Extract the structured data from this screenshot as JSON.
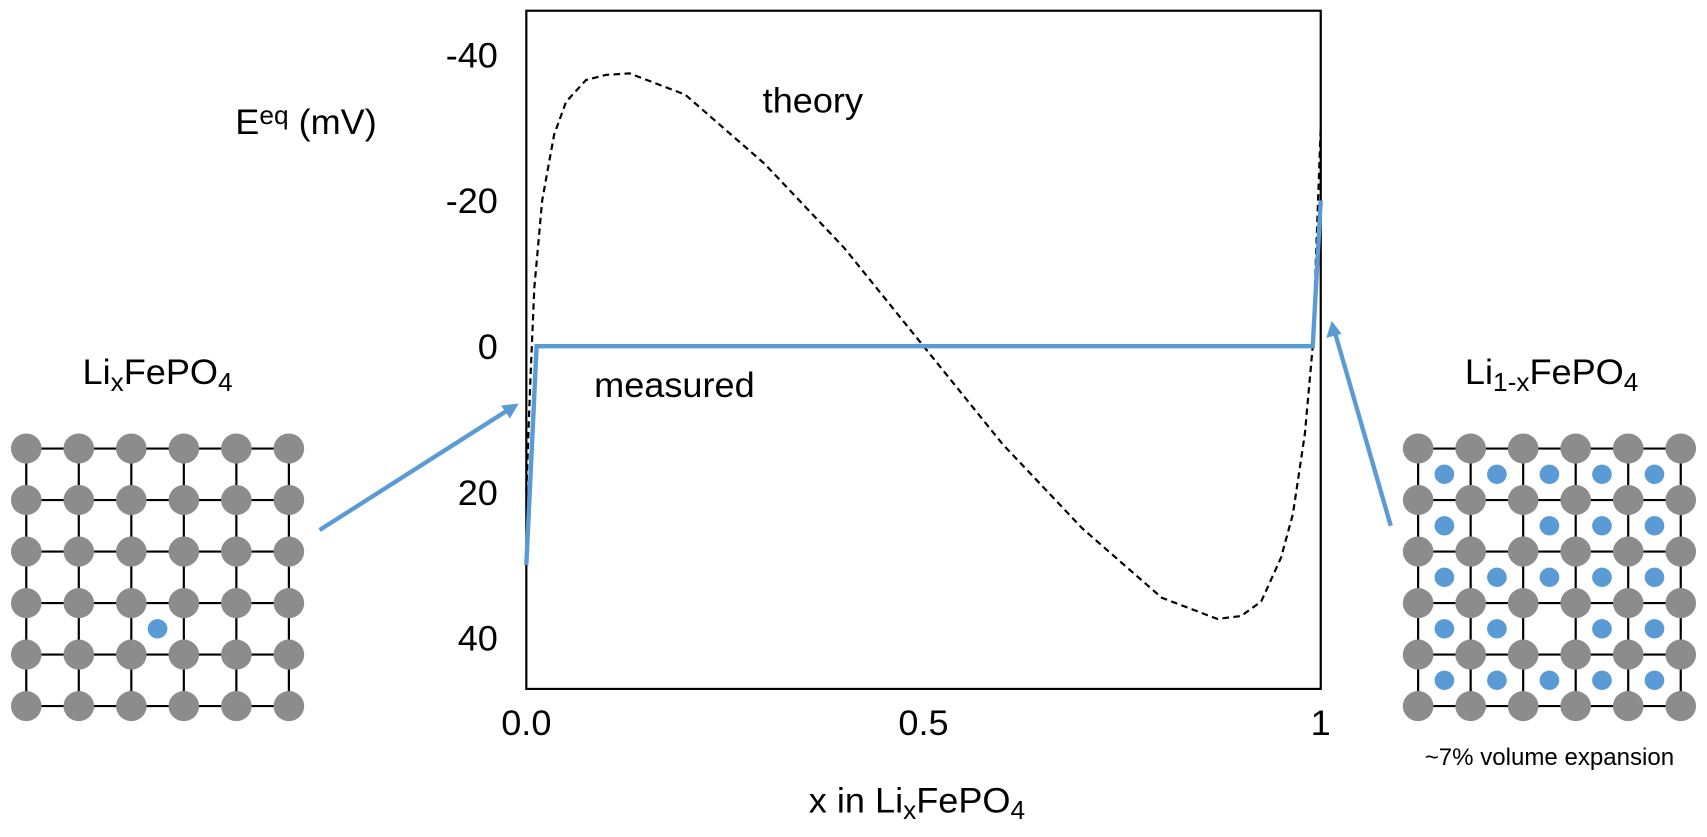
{
  "chart_data": {
    "type": "line",
    "xlabel": [
      "x in Li",
      "x",
      "FePO",
      "4"
    ],
    "ylabel": [
      "E",
      "eq",
      " (mV)"
    ],
    "xlim": [
      0,
      1
    ],
    "ylim": [
      47,
      -46
    ],
    "xticks": [
      {
        "value": 0,
        "label": "0.0"
      },
      0.5,
      1
    ],
    "yticks": [
      -40,
      -20,
      0,
      20,
      40
    ],
    "series": [
      {
        "name": "theory",
        "color": "#000000",
        "dash": true,
        "x": [
          0,
          0.005,
          0.01,
          0.02,
          0.035,
          0.05,
          0.075,
          0.1,
          0.13,
          0.2,
          0.3,
          0.4,
          0.5,
          0.6,
          0.7,
          0.8,
          0.87,
          0.9,
          0.925,
          0.95,
          0.965,
          0.98,
          0.99,
          1
        ],
        "values": [
          20,
          5,
          -8,
          -20,
          -29,
          -33.5,
          -36.5,
          -37.2,
          -37.4,
          -34.5,
          -25,
          -13.5,
          0,
          13.5,
          25,
          34.5,
          37.4,
          37,
          35,
          29,
          23,
          12,
          0,
          -30
        ]
      },
      {
        "name": "measured",
        "color": "#5b9bd5",
        "dash": false,
        "x": [
          0,
          0.013,
          0.99,
          1
        ],
        "values": [
          30,
          0,
          0,
          -20
        ]
      }
    ],
    "left_label": [
      "Li",
      "x",
      "FePO",
      "4"
    ],
    "right_label": [
      "Li",
      "1-x",
      "FePO",
      "4"
    ],
    "note": "~7% volume expansion"
  }
}
